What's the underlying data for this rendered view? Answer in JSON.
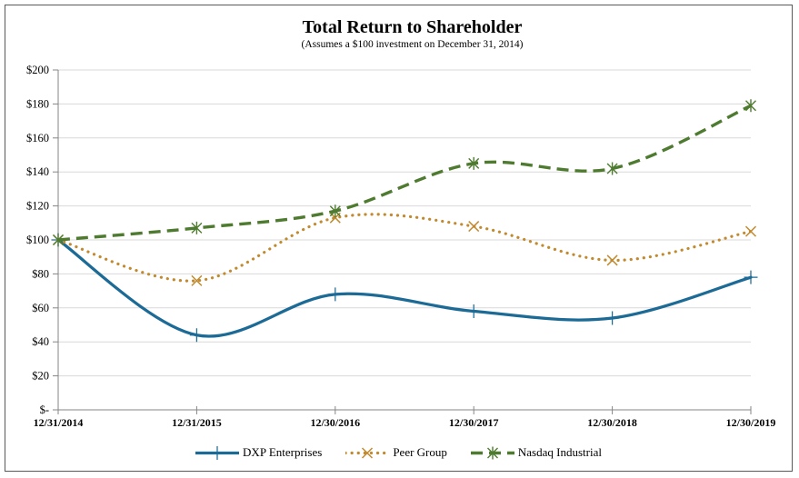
{
  "title": "Total Return to Shareholder",
  "subtitle": "(Assumes a $100 investment on December 31, 2014)",
  "chart_data": {
    "type": "line",
    "x": [
      "12/31/2014",
      "12/31/2015",
      "12/30/2016",
      "12/30/2017",
      "12/30/2018",
      "12/30/2019"
    ],
    "series": [
      {
        "name": "DXP Enterprises",
        "values": [
          100,
          44,
          68,
          58,
          54,
          78
        ],
        "color": "#1C6A96",
        "style": "solid",
        "marker": "plus"
      },
      {
        "name": "Peer Group",
        "values": [
          100,
          76,
          113,
          108,
          88,
          105
        ],
        "color": "#C28A2E",
        "style": "dotted",
        "marker": "x"
      },
      {
        "name": "Nasdaq Industrial",
        "values": [
          100,
          107,
          117,
          145,
          142,
          179
        ],
        "color": "#4E7B2F",
        "style": "dashed",
        "marker": "star"
      }
    ],
    "y_ticks": [
      {
        "label": "$200",
        "value": 200
      },
      {
        "label": "$180",
        "value": 180
      },
      {
        "label": "$160",
        "value": 160
      },
      {
        "label": "$140",
        "value": 140
      },
      {
        "label": "$120",
        "value": 120
      },
      {
        "label": "$100",
        "value": 100
      },
      {
        "label": "$80",
        "value": 80
      },
      {
        "label": "$60",
        "value": 60
      },
      {
        "label": "$40",
        "value": 40
      },
      {
        "label": "$20",
        "value": 20
      },
      {
        "label": "$-",
        "value": 0
      }
    ],
    "ylim": [
      0,
      200
    ],
    "grid": true,
    "legend_position": "bottom",
    "colors": {
      "gridline": "#D9D9D9",
      "axis": "#858585",
      "text": "#000000",
      "frame_border": "#595959",
      "background": "#FFFFFF"
    }
  }
}
